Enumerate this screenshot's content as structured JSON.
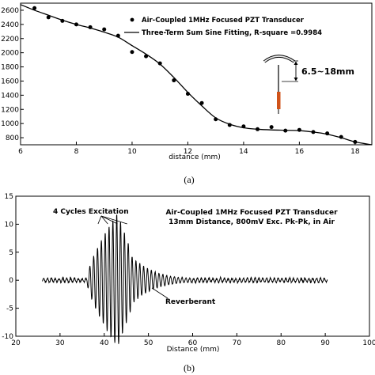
{
  "chart_data": [
    {
      "type": "scatter",
      "caption": "(a)",
      "xlabel": "distance (mm)",
      "ylabel": "",
      "xlim": [
        6,
        18.6
      ],
      "ylim": [
        700,
        2700
      ],
      "xticks": [
        6,
        8,
        10,
        12,
        14,
        16,
        18
      ],
      "yticks": [
        800,
        1000,
        1200,
        1400,
        1600,
        1800,
        2000,
        2200,
        2400,
        2600
      ],
      "legend_position": "top-right",
      "series": [
        {
          "name": "Air-Coupled 1MHz Focused PZT Transducer",
          "kind": "points",
          "x": [
            6.5,
            7.0,
            7.5,
            8.0,
            8.5,
            9.0,
            9.5,
            10.0,
            10.5,
            11.0,
            11.5,
            12.0,
            12.5,
            13.0,
            13.5,
            14.0,
            14.5,
            15.0,
            15.5,
            16.0,
            16.5,
            17.0,
            17.5,
            18.0
          ],
          "y": [
            2630,
            2500,
            2450,
            2400,
            2360,
            2330,
            2240,
            2010,
            1950,
            1850,
            1610,
            1420,
            1290,
            1060,
            980,
            960,
            920,
            950,
            900,
            910,
            880,
            860,
            810,
            740
          ]
        },
        {
          "name": "Three-Term Sum Sine Fitting, R-square =0.9984",
          "kind": "line",
          "x": [
            6.0,
            6.5,
            7.0,
            7.5,
            8.0,
            8.5,
            9.0,
            9.5,
            10.0,
            10.5,
            11.0,
            11.5,
            12.0,
            12.5,
            13.0,
            13.5,
            14.0,
            14.5,
            15.0,
            15.5,
            16.0,
            16.5,
            17.0,
            17.5,
            18.0,
            18.6
          ],
          "y": [
            2680,
            2600,
            2530,
            2460,
            2400,
            2350,
            2290,
            2220,
            2100,
            1980,
            1840,
            1650,
            1440,
            1250,
            1080,
            990,
            940,
            920,
            910,
            905,
            900,
            880,
            850,
            800,
            740,
            700
          ]
        }
      ],
      "inset": {
        "label": "6.5~18mm",
        "description_icons": [
          "curved-transducer-icon",
          "probe-icon"
        ]
      }
    },
    {
      "type": "line",
      "caption": "(b)",
      "xlabel": "Distance (mm)",
      "ylabel": "",
      "xlim": [
        20,
        100
      ],
      "ylim": [
        -10,
        15
      ],
      "xticks": [
        20,
        30,
        40,
        50,
        60,
        70,
        80,
        90,
        100
      ],
      "yticks": [
        -10,
        -5,
        0,
        5,
        10,
        15
      ],
      "title_lines": [
        "Air-Coupled 1MHz Focused PZT Transducer",
        "13mm Distance, 800mV Exc. Pk-Pk, in Air"
      ],
      "annotations": [
        {
          "text": "4 Cycles Excitation",
          "x": 41,
          "y": 11.5
        },
        {
          "text": "Reverberant",
          "x": 53,
          "y": -4
        }
      ],
      "signal": {
        "x_start": 26,
        "x_end": 90.5,
        "noise_amplitude": 0.35,
        "burst": {
          "x_start": 36,
          "x_peak": 43,
          "x_end": 46,
          "peak_amplitude": 12
        },
        "reverberation": {
          "x_start": 46,
          "x_end": 62,
          "start_amplitude": 4.5
        },
        "cycles_per_mm": 1.15
      }
    }
  ],
  "colors": {
    "axis": "#000000",
    "probe_body": "#d0531a",
    "transducer_fill": "#e8e8e8"
  }
}
